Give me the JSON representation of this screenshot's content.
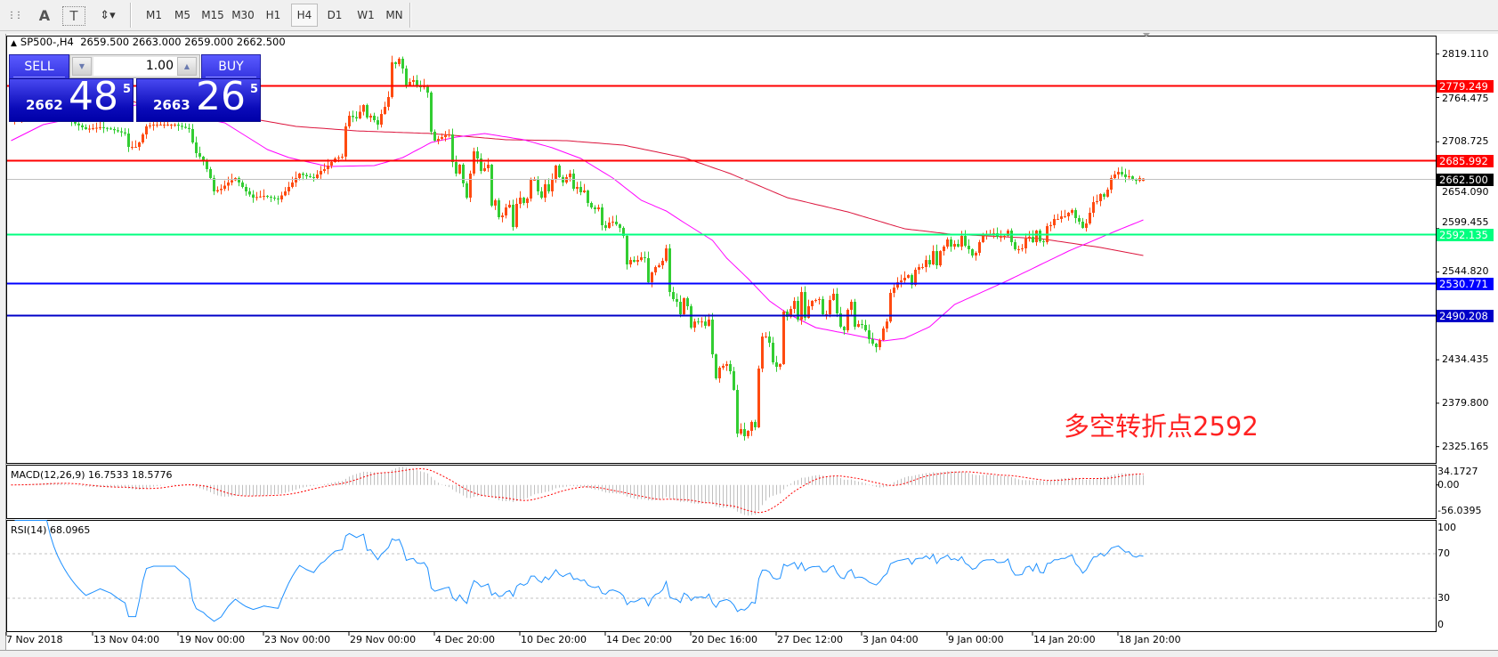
{
  "toolbar": {
    "tools": [
      {
        "name": "fibo-fan-icon",
        "glyph": "⋮⋮"
      },
      {
        "name": "text-icon",
        "glyph": "A"
      },
      {
        "name": "text-label-icon",
        "glyph": "T"
      },
      {
        "name": "arrows-icon",
        "glyph": "⇕▾"
      }
    ],
    "timeframes": [
      "M1",
      "M5",
      "M15",
      "M30",
      "H1",
      "H4",
      "D1",
      "W1",
      "MN"
    ],
    "active_timeframe": "H4"
  },
  "chart": {
    "header": {
      "symbol": "SP500-,H4",
      "ohlc": "2659.500 2663.000 2659.000 2662.500"
    },
    "trade": {
      "sell_label": "SELL",
      "buy_label": "BUY",
      "lot": "1.00",
      "sell": {
        "big": "2662",
        "main": "48",
        "sup": "5"
      },
      "buy": {
        "big": "2663",
        "main": "26",
        "sup": "5"
      }
    },
    "annotation": "多空转折点2592",
    "price_ticks": [
      "2819.110",
      "2764.475",
      "2708.725",
      "2654.090",
      "2599.455",
      "2544.820",
      "2434.435",
      "2379.800",
      "2325.165"
    ],
    "hlines": [
      {
        "price": 2779.249,
        "label": "2779.249",
        "color": "#ff0000"
      },
      {
        "price": 2685.992,
        "label": "2685.992",
        "color": "#ff0000"
      },
      {
        "price": 2592.135,
        "label": "2592.135",
        "color": "#00ff7f"
      },
      {
        "price": 2530.771,
        "label": "2530.771",
        "color": "#0000ff"
      },
      {
        "price": 2490.208,
        "label": "2490.208",
        "color": "#0000c8"
      }
    ],
    "current_price": {
      "price": 2662.5,
      "label": "2662.500",
      "color": "#000000",
      "line_color": "#c0c0c0"
    },
    "colors": {
      "up": "#ff4a10",
      "down": "#32cd32",
      "ma_fast": "#ff00ff",
      "ma_slow": "#dc143c"
    }
  },
  "chart_data": {
    "type": "candlestick",
    "ylim": [
      2325.165,
      2819.11
    ],
    "last_bar": {
      "open": 2659.5,
      "high": 2663.0,
      "low": 2659.0,
      "close": 2662.5
    },
    "closes": [
      [
        0,
        2735
      ],
      [
        10,
        2750
      ],
      [
        21,
        2724.7
      ],
      [
        25,
        2726.9
      ],
      [
        28,
        2724.7
      ],
      [
        32,
        2719.1
      ],
      [
        33,
        2702.3
      ],
      [
        35,
        2702.3
      ],
      [
        36,
        2707.9
      ],
      [
        38,
        2728.1
      ],
      [
        40,
        2730.3
      ],
      [
        42,
        2730.3
      ],
      [
        46,
        2730.3
      ],
      [
        50,
        2724.7
      ],
      [
        51,
        2707.9
      ],
      [
        52,
        2694.4
      ],
      [
        54,
        2685.5
      ],
      [
        56,
        2663.1
      ],
      [
        57,
        2646.3
      ],
      [
        59,
        2649.6
      ],
      [
        61,
        2657.5
      ],
      [
        63,
        2663.1
      ],
      [
        64,
        2657.5
      ],
      [
        66,
        2646.3
      ],
      [
        68,
        2638.4
      ],
      [
        71,
        2640.7
      ],
      [
        73,
        2638.4
      ],
      [
        75,
        2636.2
      ],
      [
        77,
        2646.3
      ],
      [
        79,
        2657.5
      ],
      [
        81,
        2668.7
      ],
      [
        83,
        2665.3
      ],
      [
        85,
        2663.1
      ],
      [
        87,
        2672.0
      ],
      [
        88,
        2674.3
      ],
      [
        91,
        2687.7
      ],
      [
        93,
        2690.0
      ],
      [
        94,
        2728.1
      ],
      [
        95,
        2741.5
      ],
      [
        97,
        2738.1
      ],
      [
        99,
        2754.9
      ],
      [
        100,
        2739.2
      ],
      [
        101,
        2741.5
      ],
      [
        103,
        2730.3
      ],
      [
        104,
        2743.7
      ],
      [
        105,
        2752.7
      ],
      [
        106,
        2765.0
      ],
      [
        107,
        2808.7
      ],
      [
        108,
        2806.5
      ],
      [
        109,
        2813.2
      ],
      [
        110,
        2800.9
      ],
      [
        111,
        2779.6
      ],
      [
        112,
        2784.1
      ],
      [
        113,
        2786.3
      ],
      [
        114,
        2778.5
      ],
      [
        115,
        2777.3
      ],
      [
        116,
        2779.6
      ],
      [
        117,
        2770.6
      ],
      [
        118,
        2721.4
      ],
      [
        119,
        2710.1
      ],
      [
        120,
        2712.4
      ],
      [
        121,
        2714.6
      ],
      [
        122,
        2716.8
      ],
      [
        123,
        2718.0
      ],
      [
        124,
        2683.2
      ],
      [
        125,
        2668.7
      ],
      [
        126,
        2679.9
      ],
      [
        127,
        2656.4
      ],
      [
        128,
        2638.4
      ],
      [
        129,
        2668.7
      ],
      [
        130,
        2696.7
      ],
      [
        131,
        2687.7
      ],
      [
        132,
        2672.0
      ],
      [
        133,
        2675.4
      ],
      [
        134,
        2679.9
      ],
      [
        135,
        2628.4
      ],
      [
        136,
        2635.1
      ],
      [
        137,
        2613.8
      ],
      [
        138,
        2616.0
      ],
      [
        139,
        2626.1
      ],
      [
        140,
        2629.5
      ],
      [
        141,
        2601.5
      ],
      [
        142,
        2630.6
      ],
      [
        143,
        2638.4
      ],
      [
        144,
        2631.7
      ],
      [
        145,
        2637.3
      ],
      [
        146,
        2660.8
      ],
      [
        147,
        2660.8
      ],
      [
        148,
        2646.3
      ],
      [
        149,
        2638.4
      ],
      [
        150,
        2655.3
      ],
      [
        151,
        2646.3
      ],
      [
        152,
        2660.8
      ],
      [
        153,
        2678.8
      ],
      [
        154,
        2664.2
      ],
      [
        155,
        2657.5
      ],
      [
        156,
        2664.2
      ],
      [
        157,
        2668.7
      ],
      [
        158,
        2649.6
      ],
      [
        159,
        2651.9
      ],
      [
        160,
        2645.2
      ],
      [
        161,
        2647.4
      ],
      [
        162,
        2631.7
      ],
      [
        163,
        2626.1
      ],
      [
        164,
        2623.9
      ],
      [
        165,
        2626.1
      ],
      [
        166,
        2603.7
      ],
      [
        167,
        2600.4
      ],
      [
        168,
        2607.1
      ],
      [
        169,
        2608.2
      ],
      [
        170,
        2604.8
      ],
      [
        171,
        2600.4
      ],
      [
        172,
        2590.3
      ],
      [
        173,
        2554.4
      ],
      [
        174,
        2560.0
      ],
      [
        175,
        2557.8
      ],
      [
        176,
        2560.0
      ],
      [
        177,
        2563.4
      ],
      [
        178,
        2562.3
      ],
      [
        179,
        2532.0
      ],
      [
        180,
        2544.4
      ],
      [
        181,
        2551.1
      ],
      [
        182,
        2553.3
      ],
      [
        183,
        2558.9
      ],
      [
        184,
        2574.6
      ],
      [
        185,
        2519.7
      ],
      [
        186,
        2510.8
      ],
      [
        187,
        2507.4
      ],
      [
        188,
        2491.7
      ],
      [
        189,
        2511.9
      ],
      [
        190,
        2501.8
      ],
      [
        191,
        2474.9
      ],
      [
        192,
        2482.6
      ],
      [
        193,
        2481.6
      ],
      [
        194,
        2482.6
      ],
      [
        195,
        2477.2
      ],
      [
        196,
        2485.0
      ],
      [
        197,
        2441.3
      ],
      [
        198,
        2411.1
      ],
      [
        199,
        2424.5
      ],
      [
        200,
        2426.8
      ],
      [
        201,
        2429.0
      ],
      [
        202,
        2420.0
      ],
      [
        203,
        2396.5
      ],
      [
        204,
        2341.6
      ],
      [
        205,
        2347.2
      ],
      [
        206,
        2338.3
      ],
      [
        207,
        2345.0
      ],
      [
        208,
        2356.2
      ],
      [
        209,
        2349.5
      ],
      [
        210,
        2423.4
      ],
      [
        211,
        2463.7
      ],
      [
        212,
        2463.7
      ],
      [
        213,
        2455.9
      ],
      [
        214,
        2431.2
      ],
      [
        215,
        2425.6
      ],
      [
        216,
        2429.0
      ],
      [
        217,
        2495.1
      ],
      [
        218,
        2488.4
      ],
      [
        219,
        2498.4
      ],
      [
        220,
        2508.5
      ],
      [
        221,
        2485.0
      ],
      [
        222,
        2519.7
      ],
      [
        223,
        2487.2
      ],
      [
        224,
        2501.8
      ],
      [
        225,
        2508.5
      ],
      [
        226,
        2509.6
      ],
      [
        227,
        2510.8
      ],
      [
        228,
        2491.7
      ],
      [
        229,
        2491.7
      ],
      [
        230,
        2509.6
      ],
      [
        231,
        2517.5
      ],
      [
        232,
        2492.8
      ],
      [
        233,
        2476.0
      ],
      [
        234,
        2471.6
      ],
      [
        235,
        2497.3
      ],
      [
        236,
        2507.4
      ],
      [
        237,
        2476.0
      ],
      [
        238,
        2479.4
      ],
      [
        239,
        2478.3
      ],
      [
        240,
        2471.6
      ],
      [
        241,
        2460.4
      ],
      [
        242,
        2454.7
      ],
      [
        243,
        2450.3
      ],
      [
        244,
        2459.2
      ],
      [
        245,
        2473.8
      ],
      [
        246,
        2482.6
      ],
      [
        247,
        2518.6
      ],
      [
        248,
        2525.3
      ],
      [
        249,
        2532.0
      ],
      [
        250,
        2534.3
      ],
      [
        251,
        2537.6
      ],
      [
        252,
        2541.0
      ],
      [
        253,
        2528.7
      ],
      [
        254,
        2547.7
      ],
      [
        255,
        2551.1
      ],
      [
        256,
        2551.1
      ],
      [
        257,
        2560.0
      ],
      [
        258,
        2554.4
      ],
      [
        259,
        2571.2
      ],
      [
        260,
        2553.3
      ],
      [
        261,
        2571.2
      ],
      [
        262,
        2576.8
      ],
      [
        263,
        2585.8
      ],
      [
        264,
        2576.8
      ],
      [
        265,
        2580.2
      ],
      [
        266,
        2576.8
      ],
      [
        267,
        2590.3
      ],
      [
        268,
        2577.9
      ],
      [
        269,
        2573.5
      ],
      [
        270,
        2565.6
      ],
      [
        271,
        2569.0
      ],
      [
        272,
        2582.4
      ],
      [
        273,
        2590.3
      ],
      [
        274,
        2592.5
      ],
      [
        275,
        2592.5
      ],
      [
        276,
        2593.6
      ],
      [
        277,
        2589.2
      ],
      [
        278,
        2589.2
      ],
      [
        279,
        2590.3
      ],
      [
        280,
        2597.0
      ],
      [
        281,
        2582.4
      ],
      [
        282,
        2573.5
      ],
      [
        283,
        2573.5
      ],
      [
        284,
        2574.6
      ],
      [
        285,
        2586.9
      ],
      [
        286,
        2589.2
      ],
      [
        287,
        2582.4
      ],
      [
        288,
        2597.0
      ],
      [
        289,
        2583.5
      ],
      [
        290,
        2582.4
      ],
      [
        291,
        2602.6
      ],
      [
        292,
        2603.7
      ],
      [
        293,
        2611.6
      ],
      [
        294,
        2611.6
      ],
      [
        295,
        2614.9
      ],
      [
        296,
        2614.9
      ],
      [
        297,
        2619.4
      ],
      [
        298,
        2622.8
      ],
      [
        299,
        2612.7
      ],
      [
        300,
        2608.2
      ],
      [
        301,
        2600.4
      ],
      [
        302,
        2606.0
      ],
      [
        303,
        2619.4
      ],
      [
        304,
        2632.8
      ],
      [
        305,
        2634.0
      ],
      [
        306,
        2642.9
      ],
      [
        307,
        2639.6
      ],
      [
        308,
        2648.5
      ],
      [
        309,
        2663.1
      ],
      [
        310,
        2667.6
      ],
      [
        311,
        2670.9
      ],
      [
        312,
        2667.6
      ],
      [
        313,
        2664.2
      ],
      [
        314,
        2665.3
      ],
      [
        315,
        2660.8
      ],
      [
        316,
        2659.7
      ],
      [
        317,
        2663.1
      ],
      [
        318,
        2662.5
      ]
    ],
    "ma_fast": [
      [
        0,
        2710.1
      ],
      [
        9,
        2730.3
      ],
      [
        35,
        2754.9
      ],
      [
        60,
        2732.5
      ],
      [
        72,
        2698.9
      ],
      [
        78,
        2688.8
      ],
      [
        89,
        2677.6
      ],
      [
        102,
        2678.8
      ],
      [
        110,
        2688.8
      ],
      [
        118,
        2707.9
      ],
      [
        125,
        2714.6
      ],
      [
        133,
        2719.1
      ],
      [
        144,
        2711.3
      ],
      [
        152,
        2701.2
      ],
      [
        160,
        2687.7
      ],
      [
        169,
        2663.1
      ],
      [
        177,
        2635.1
      ],
      [
        184,
        2621.6
      ],
      [
        189,
        2607.1
      ],
      [
        193,
        2595.9
      ],
      [
        197,
        2584.7
      ],
      [
        201,
        2562.3
      ],
      [
        207,
        2536.5
      ],
      [
        213,
        2508.5
      ],
      [
        218,
        2492.8
      ],
      [
        226,
        2474.9
      ],
      [
        235,
        2467.1
      ],
      [
        245,
        2458.1
      ],
      [
        251,
        2461.5
      ],
      [
        258,
        2476.0
      ],
      [
        265,
        2504.0
      ],
      [
        280,
        2534.3
      ],
      [
        297,
        2571.2
      ],
      [
        310,
        2595.9
      ],
      [
        318,
        2610.4
      ]
    ],
    "ma_slow": [
      [
        0,
        2810.9
      ],
      [
        35,
        2758.3
      ],
      [
        70,
        2735.9
      ],
      [
        80,
        2728.1
      ],
      [
        97,
        2722.4
      ],
      [
        118,
        2719.1
      ],
      [
        139,
        2711.3
      ],
      [
        156,
        2710.1
      ],
      [
        172,
        2704.5
      ],
      [
        189,
        2688.8
      ],
      [
        202,
        2668.7
      ],
      [
        218,
        2638.4
      ],
      [
        235,
        2620.5
      ],
      [
        251,
        2599.2
      ],
      [
        264,
        2592.5
      ],
      [
        289,
        2586.9
      ],
      [
        306,
        2575.7
      ],
      [
        318,
        2565.6
      ]
    ]
  },
  "macd": {
    "label": "MACD(12,26,9) 16.7533 18.5776",
    "scale_top": "34.1727",
    "scale_zero": "0.00",
    "scale_bottom": "-56.0395",
    "range": [
      -56.0395,
      34.1727
    ],
    "hist_color": "#c0c0c0",
    "signal_color": "#ff0000"
  },
  "rsi": {
    "label": "RSI(14) 68.0965",
    "levels": [
      "100",
      "70",
      "30",
      "0"
    ],
    "line_color": "#1e90ff"
  },
  "time_axis": [
    {
      "label": "7 Nov 2018",
      "bar": 0
    },
    {
      "label": "13 Nov 04:00",
      "bar": 23
    },
    {
      "label": "19 Nov 00:00",
      "bar": 47
    },
    {
      "label": "23 Nov 00:00",
      "bar": 71
    },
    {
      "label": "29 Nov 00:00",
      "bar": 95
    },
    {
      "label": "4 Dec 20:00",
      "bar": 119
    },
    {
      "label": "10 Dec 20:00",
      "bar": 143
    },
    {
      "label": "14 Dec 20:00",
      "bar": 167
    },
    {
      "label": "20 Dec 16:00",
      "bar": 191
    },
    {
      "label": "27 Dec 12:00",
      "bar": 215
    },
    {
      "label": "3 Jan 04:00",
      "bar": 239
    },
    {
      "label": "9 Jan 00:00",
      "bar": 263
    },
    {
      "label": "14 Jan 20:00",
      "bar": 287
    },
    {
      "label": "18 Jan 20:00",
      "bar": 311
    }
  ]
}
